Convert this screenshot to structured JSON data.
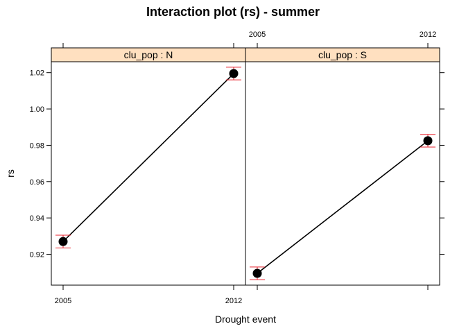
{
  "chart_data": {
    "type": "line",
    "title": "Interaction plot (rs) - summer",
    "xlabel": "Drought event",
    "ylabel": "rs",
    "x_categories": [
      "2005",
      "2012"
    ],
    "ylim": [
      0.903,
      1.026
    ],
    "y_ticks": [
      0.92,
      0.94,
      0.96,
      0.98,
      1.0,
      1.02
    ],
    "y_tick_labels": [
      "0.92",
      "0.94",
      "0.96",
      "0.98",
      "1.00",
      "1.02"
    ],
    "grid": false,
    "strip_color": "#FFE0C0",
    "error_bar_color": "#E8222E",
    "panels": [
      {
        "strip": "clu_pop : N",
        "points": [
          {
            "x": "2005",
            "y": 0.927,
            "lower": 0.9235,
            "upper": 0.9305
          },
          {
            "x": "2012",
            "y": 1.0195,
            "lower": 1.016,
            "upper": 1.023
          }
        ]
      },
      {
        "strip": "clu_pop : S",
        "points": [
          {
            "x": "2005",
            "y": 0.9095,
            "lower": 0.906,
            "upper": 0.913
          },
          {
            "x": "2012",
            "y": 0.9825,
            "lower": 0.979,
            "upper": 0.986
          }
        ]
      }
    ]
  }
}
